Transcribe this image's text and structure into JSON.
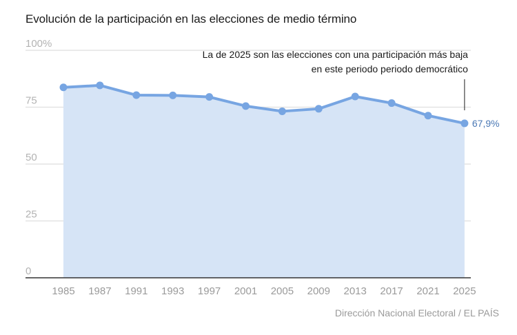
{
  "title": "Evolución de la participación en las elecciones de medio término",
  "source": "Dirección Nacional Electoral / EL PAÍS",
  "colors": {
    "line": "#77a5e2",
    "fill": "#d6e4f6",
    "grid": "#e3e3e3",
    "axis": "#333333",
    "end_label": "#4a78b5"
  },
  "chart_data": {
    "type": "area",
    "title": "Evolución de la participación en las elecciones de medio término",
    "xlabel": "",
    "ylabel": "",
    "categories": [
      "1985",
      "1987",
      "1991",
      "1993",
      "1997",
      "2001",
      "2005",
      "2009",
      "2013",
      "2017",
      "2021",
      "2025"
    ],
    "series": [
      {
        "name": "Participación (%)",
        "values": [
          83.7,
          84.6,
          80.3,
          80.2,
          79.5,
          75.5,
          73.2,
          74.3,
          79.7,
          76.8,
          71.3,
          67.9
        ]
      }
    ],
    "ylim": [
      0,
      100
    ],
    "yticks": [
      {
        "value": 100,
        "label": "100%"
      },
      {
        "value": 75,
        "label": "75"
      },
      {
        "value": 50,
        "label": "50"
      },
      {
        "value": 25,
        "label": "25"
      },
      {
        "value": 0,
        "label": "0"
      }
    ],
    "grid": true,
    "end_label": "67,9%",
    "annotation": {
      "lines": [
        "La de 2025 son las elecciones con una participación más baja",
        "en este periodo periodo democrático"
      ],
      "target": "2025"
    },
    "source": "Dirección Nacional Electoral / EL PAÍS"
  }
}
